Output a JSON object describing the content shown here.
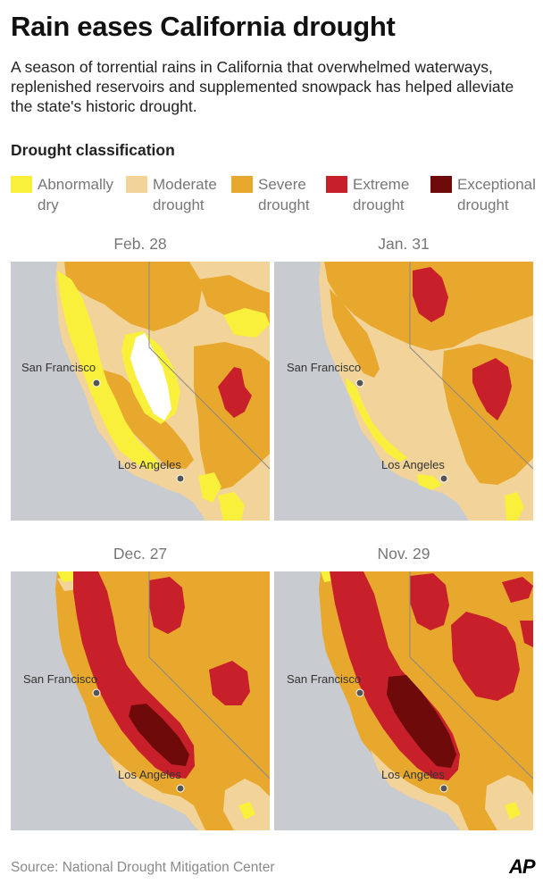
{
  "title": "Rain eases California drought",
  "subtitle": "A season of torrential rains in California that overwhelmed waterways, replenished reservoirs and supplemented snowpack has helped alleviate the state's historic drought.",
  "legend": {
    "title": "Drought classification",
    "items": [
      {
        "line1": "Abnormally",
        "line2": "dry",
        "color": "#f8f03a"
      },
      {
        "line1": "Moderate",
        "line2": "drought",
        "color": "#f2d49a"
      },
      {
        "line1": "Severe",
        "line2": "drought",
        "color": "#e8a82e"
      },
      {
        "line1": "Extreme",
        "line2": "drought",
        "color": "#c8202a"
      },
      {
        "line1": "Exceptional",
        "line2": "drought",
        "color": "#6e0a0a"
      }
    ]
  },
  "maps": [
    {
      "label": "Feb. 28"
    },
    {
      "label": "Jan. 31"
    },
    {
      "label": "Dec. 27"
    },
    {
      "label": "Nov. 29"
    }
  ],
  "cities": {
    "san_francisco": "San Francisco",
    "los_angeles": "Los Angeles"
  },
  "colors": {
    "ocean": "#c8cbcf",
    "none": "#ffffff",
    "d0": "#f8f03a",
    "d1": "#f2d49a",
    "d2": "#e8a82e",
    "d3": "#c8202a",
    "d4": "#6e0a0a"
  },
  "source": "Source: National Drought Mitigation Center",
  "credit": "AP"
}
